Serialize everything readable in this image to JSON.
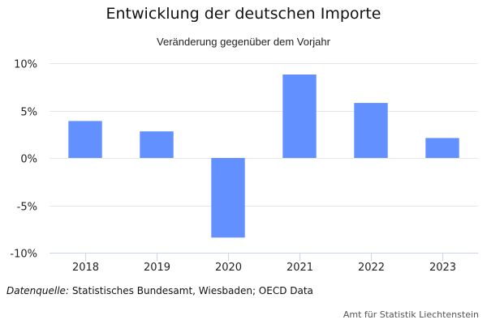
{
  "chart_data": {
    "type": "bar",
    "title": "Entwicklung der deutschen Importe",
    "subtitle": "Veränderung gegenüber dem Vorjahr",
    "categories": [
      "2018",
      "2019",
      "2020",
      "2021",
      "2022",
      "2023"
    ],
    "values": [
      3.9,
      2.8,
      -8.4,
      8.8,
      5.8,
      2.1
    ],
    "unit": "%",
    "xlabel": "",
    "ylabel": "",
    "ylim": [
      -10,
      10
    ],
    "yticks": [
      10,
      5,
      0,
      -5,
      -10
    ],
    "ytick_labels": [
      "10%",
      "5%",
      "0%",
      "-5%",
      "-10%"
    ],
    "grid": true,
    "legend": "none",
    "bar_color": "#6290ff",
    "grid_color": "#e6e6e6",
    "axis_color": "#ccd6eb"
  },
  "footer": {
    "source_label": "Datenquelle:",
    "source_text": " Statistisches Bundesamt, Wiesbaden; OECD Data",
    "credit": "Amt für Statistik Liechtenstein"
  }
}
